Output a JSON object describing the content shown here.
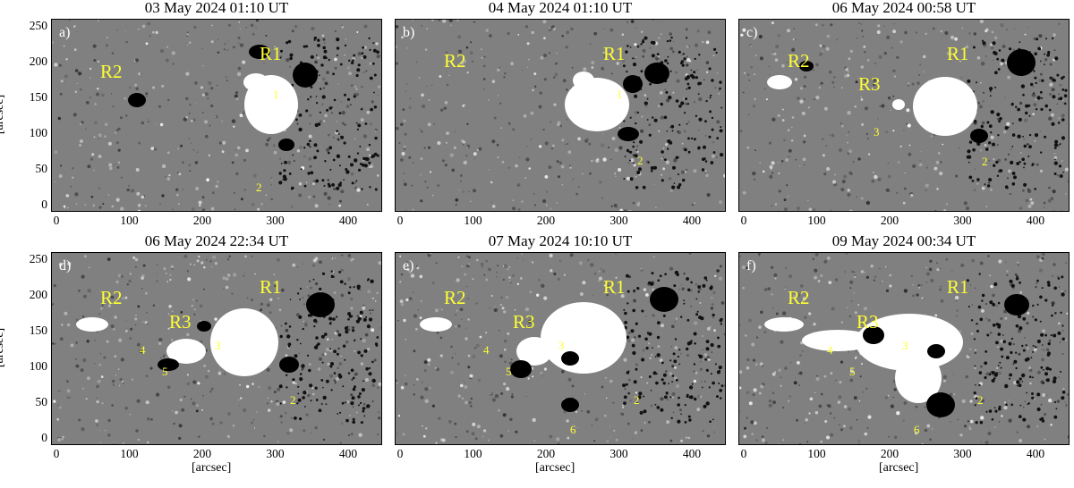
{
  "figure": {
    "y_axis_label": "[arcsec]",
    "x_axis_label": "[arcsec]",
    "x_ticks": [
      "0",
      "100",
      "200",
      "300",
      "400"
    ],
    "y_ticks": [
      "0",
      "50",
      "100",
      "150",
      "200",
      "250"
    ],
    "colors": {
      "label": "#ffff33",
      "panel_letter": "#ffffff",
      "background_field": "#808080"
    },
    "panels": [
      {
        "letter": "a)",
        "title": "03 May 2024 01:10 UT",
        "regions": [
          "R2",
          "R1"
        ],
        "numbers": [
          "1",
          "2"
        ]
      },
      {
        "letter": "b)",
        "title": "04 May 2024 01:10 UT",
        "regions": [
          "R2",
          "R1"
        ],
        "numbers": [
          "1",
          "2"
        ]
      },
      {
        "letter": "c)",
        "title": "06 May 2024 00:58 UT",
        "regions": [
          "R2",
          "R3",
          "R1"
        ],
        "numbers": [
          "3",
          "2"
        ]
      },
      {
        "letter": "d)",
        "title": "06 May 2024 22:34 UT",
        "regions": [
          "R2",
          "R3",
          "R1"
        ],
        "numbers": [
          "4",
          "3",
          "5",
          "2"
        ]
      },
      {
        "letter": "e)",
        "title": "07 May 2024 10:10 UT",
        "regions": [
          "R2",
          "R3",
          "R1"
        ],
        "numbers": [
          "4",
          "3",
          "5",
          "2",
          "6"
        ]
      },
      {
        "letter": "f)",
        "title": "09 May 2024 00:34 UT",
        "regions": [
          "R2",
          "R3",
          "R1"
        ],
        "numbers": [
          "4",
          "3",
          "5",
          "2",
          "6"
        ]
      }
    ]
  }
}
